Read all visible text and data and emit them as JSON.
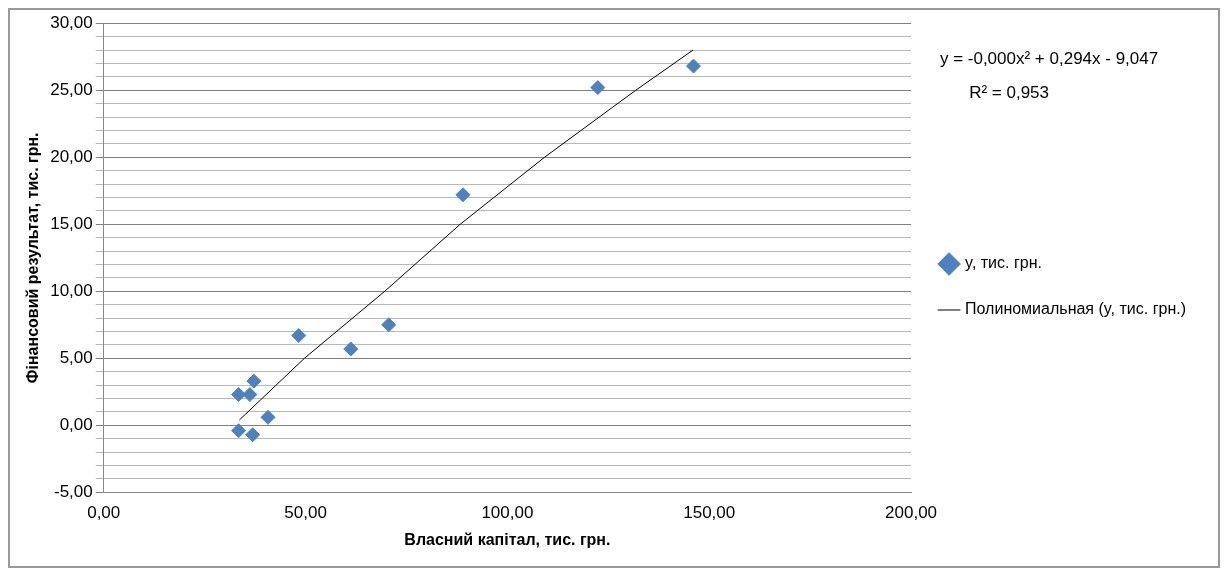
{
  "chart_data": {
    "type": "scatter",
    "xlabel": "Власний капітал, тис. грн.",
    "ylabel": "Фінансовий результат, тис. грн.",
    "xlim": [
      0,
      200
    ],
    "xticks": [
      {
        "value": 0,
        "label": "0,00"
      },
      {
        "value": 50,
        "label": "50,00"
      },
      {
        "value": 100,
        "label": "100,00"
      },
      {
        "value": 150,
        "label": "150,00"
      },
      {
        "value": 200,
        "label": "200,00"
      }
    ],
    "ylim": [
      -5,
      30
    ],
    "yticks": [
      {
        "value": -5,
        "label": "-5,00"
      },
      {
        "value": -4,
        "label": null
      },
      {
        "value": -3,
        "label": null
      },
      {
        "value": -2,
        "label": null
      },
      {
        "value": -1,
        "label": null
      },
      {
        "value": 0,
        "label": "0,00"
      },
      {
        "value": 1,
        "label": null
      },
      {
        "value": 2,
        "label": null
      },
      {
        "value": 3,
        "label": null
      },
      {
        "value": 4,
        "label": null
      },
      {
        "value": 5,
        "label": "5,00"
      },
      {
        "value": 6,
        "label": null
      },
      {
        "value": 7,
        "label": null
      },
      {
        "value": 8,
        "label": null
      },
      {
        "value": 9,
        "label": null
      },
      {
        "value": 10,
        "label": "10,00"
      },
      {
        "value": 11,
        "label": null
      },
      {
        "value": 12,
        "label": null
      },
      {
        "value": 13,
        "label": null
      },
      {
        "value": 14,
        "label": null
      },
      {
        "value": 15,
        "label": "15,00"
      },
      {
        "value": 16,
        "label": null
      },
      {
        "value": 17,
        "label": null
      },
      {
        "value": 18,
        "label": null
      },
      {
        "value": 19,
        "label": null
      },
      {
        "value": 20,
        "label": "20,00"
      },
      {
        "value": 21,
        "label": null
      },
      {
        "value": 22,
        "label": null
      },
      {
        "value": 23,
        "label": null
      },
      {
        "value": 24,
        "label": null
      },
      {
        "value": 25,
        "label": "25,00"
      },
      {
        "value": 26,
        "label": null
      },
      {
        "value": 27,
        "label": null
      },
      {
        "value": 28,
        "label": null
      },
      {
        "value": 29,
        "label": null
      },
      {
        "value": 30,
        "label": "30,00"
      }
    ],
    "grid": "y",
    "legend": "right",
    "marker": "diamond",
    "annotations": [
      "y = -0,000x² + 0,294x - 9,047",
      "R² = 0,953"
    ],
    "series": [
      {
        "name": "y, тис. грн.",
        "color": "#4f81bd",
        "x": [
          146.1,
          122.4,
          89.0,
          48.3,
          70.6,
          61.2,
          37.2,
          33.4,
          36.2,
          40.7,
          33.4,
          36.9
        ],
        "values": [
          26.8,
          25.2,
          17.2,
          6.7,
          7.5,
          5.7,
          3.3,
          2.3,
          2.3,
          0.6,
          -0.4,
          -0.7
        ]
      },
      {
        "name": "Полиномиальная (y, тис. грн.)",
        "type": "line",
        "color": "#000000",
        "marker": "none",
        "x": [
          33.6,
          49.7,
          69.6,
          88.3,
          109.2,
          131.8,
          146
        ],
        "values": [
          0.4,
          5,
          10,
          15,
          20,
          25,
          28
        ]
      }
    ]
  }
}
